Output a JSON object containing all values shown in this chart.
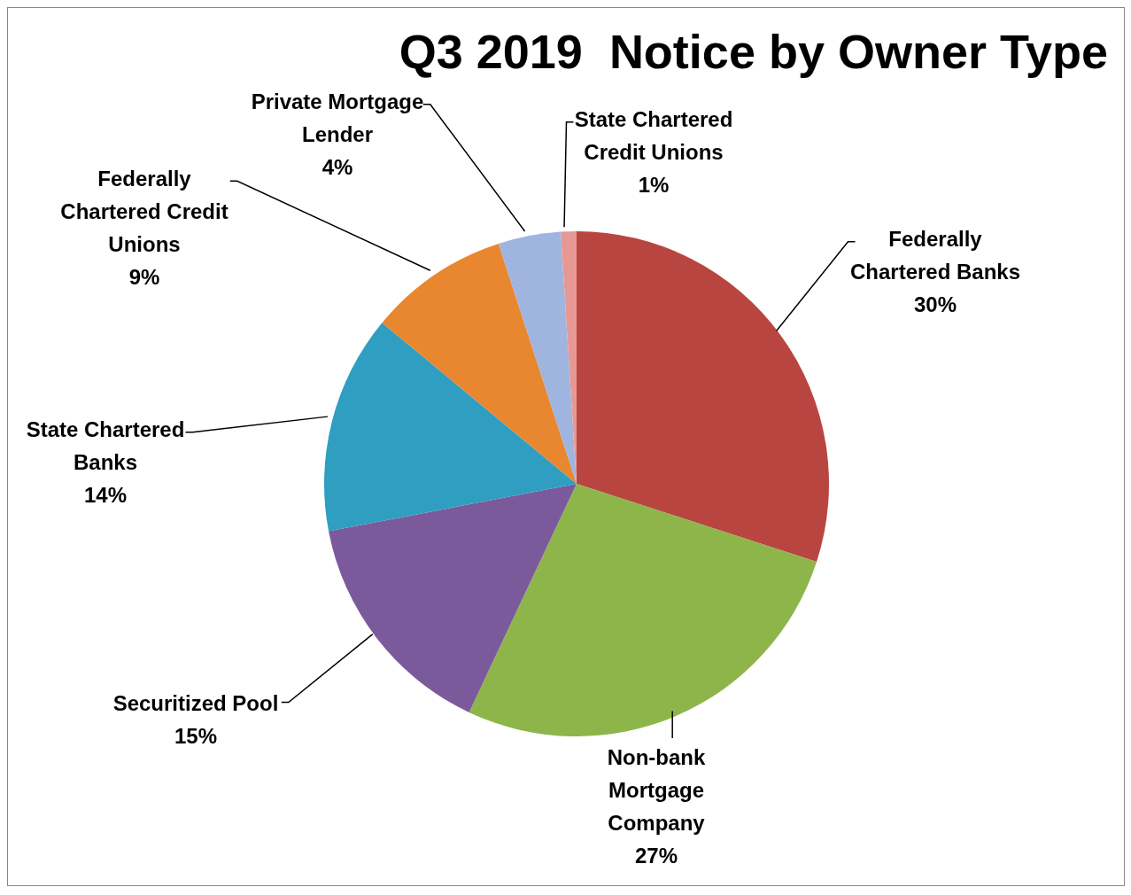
{
  "chart_data": {
    "type": "pie",
    "title": "Q3 2019  Notice by Owner Type",
    "categories": [
      "Federally Chartered Banks",
      "Non-bank Mortgage Company",
      "Securitized Pool",
      "State Chartered Banks",
      "Federally Chartered Credit Unions",
      "Private Mortgage Lender",
      "State Chartered Credit Unions"
    ],
    "values": [
      30,
      27,
      15,
      14,
      9,
      4,
      1
    ],
    "value_labels": [
      "30%",
      "27%",
      "15%",
      "14%",
      "9%",
      "4%",
      "1%"
    ],
    "colors": [
      "#b94541",
      "#8eb54a",
      "#7b5a9c",
      "#2f9ec0",
      "#e8872f",
      "#9fb5df",
      "#e69994"
    ]
  }
}
